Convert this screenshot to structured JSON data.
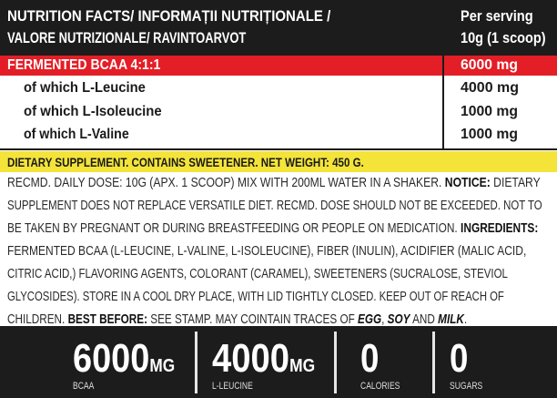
{
  "header": {
    "title_line1": "NUTRITION FACTS/ INFORMAȚII NUTRIȚIONALE /",
    "title_line2": "VALORE NUTRIZIONALE/ RAVINTOARVOT",
    "serving_line1": "Per serving",
    "serving_line2": "10g (1 scoop)"
  },
  "rows": [
    {
      "label": "FERMENTED BCAA 4:1:1",
      "value": "6000 mg"
    },
    {
      "label": "of which L-Leucine",
      "value": "4000 mg"
    },
    {
      "label": "of which L-Isoleucine",
      "value": "1000 mg"
    },
    {
      "label": "of which L-Valine",
      "value": "1000 mg"
    }
  ],
  "supplement_banner": "DIETARY SUPPLEMENT. CONTAINS SWEETENER. NET WEIGHT: 450 G.",
  "body": {
    "l1a": "RECMD. DAILY DOSE: 10G (APX. 1 SCOOP) MIX WITH 200ML WATER IN A SHAKER. ",
    "l1b": "NOTICE:",
    "l1c": " DIETARY",
    "l2": "SUPPLEMENT DOES NOT REPLACE VERSATILE DIET. RECMD. DOSE SHOULD NOT BE EXCEEDED. NOT TO",
    "l3a": "BE TAKEN BY PREGNANT OR DURING BREASTFEEDING OR PEOPLE ON MEDICATION. ",
    "l3b": "INGREDIENTS:",
    "l4": "FERMENTED BCAA (L-LEUCINE, L-VALINE, L-ISOLEUCINE), FIBER (INULIN), ACIDIFIER (MALIC ACID,",
    "l5": "CITRIC ACID,) FLAVORING AGENTS, COLORANT (CARAMEL), SWEETENERS (SUCRALOSE, STEVIOL",
    "l6": "GLYCOSIDES). STORE IN A COOL DRY PLACE, WITH LID TIGHTLY CLOSED. KEEP OUT OF REACH OF",
    "l7a": "CHILDREN. ",
    "l7b": "BEST BEFORE:",
    "l7c": " SEE STAMP. MAY COINTAIN TRACES OF ",
    "l7d": "EGG",
    "l7e": ", ",
    "l7f": "SOY",
    "l7g": " AND ",
    "l7h": "MILK",
    "l7i": "."
  },
  "footer": [
    {
      "value": "6000",
      "unit": "MG",
      "label": "BCAA"
    },
    {
      "value": "4000",
      "unit": "MG",
      "label": "L-LEUCINE"
    },
    {
      "value": "0",
      "unit": "",
      "label": "CALORIES"
    },
    {
      "value": "0",
      "unit": "",
      "label": "SUGARS"
    }
  ],
  "colors": {
    "header_bg": "#1c1c1c",
    "highlight_red": "#e31e26",
    "banner_yellow": "#f4e43a"
  }
}
